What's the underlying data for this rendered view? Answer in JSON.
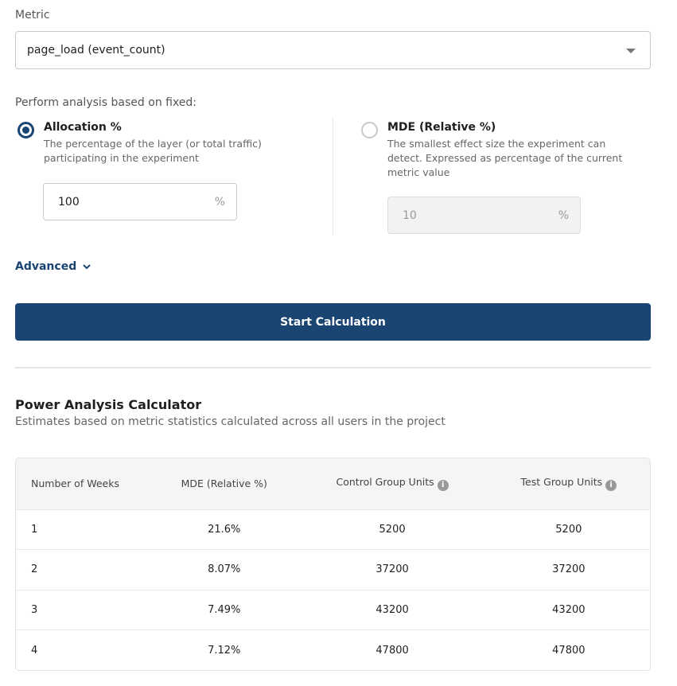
{
  "metric": {
    "label": "Metric",
    "value": "page_load (event_count)"
  },
  "analysis": {
    "label": "Perform analysis based on fixed:",
    "allocation": {
      "title": "Allocation %",
      "desc": "The percentage of the layer (or total traffic) participating in the experiment",
      "value": "100",
      "unit": "%",
      "selected": true
    },
    "mde": {
      "title": "MDE (Relative %)",
      "desc": "The smallest effect size the experiment can detect. Expressed as percentage of the current metric value",
      "value": "10",
      "unit": "%",
      "selected": false
    }
  },
  "advanced_label": "Advanced",
  "start_button": "Start Calculation",
  "calculator": {
    "title": "Power Analysis Calculator",
    "subtitle": "Estimates based on metric statistics calculated across all users in the project",
    "headers": [
      "Number of Weeks",
      "MDE (Relative %)",
      "Control Group Units",
      "Test Group Units"
    ],
    "rows": [
      [
        "1",
        "21.6%",
        "5200",
        "5200"
      ],
      [
        "2",
        "8.07%",
        "37200",
        "37200"
      ],
      [
        "3",
        "7.49%",
        "43200",
        "43200"
      ],
      [
        "4",
        "7.12%",
        "47800",
        "47800"
      ]
    ]
  }
}
